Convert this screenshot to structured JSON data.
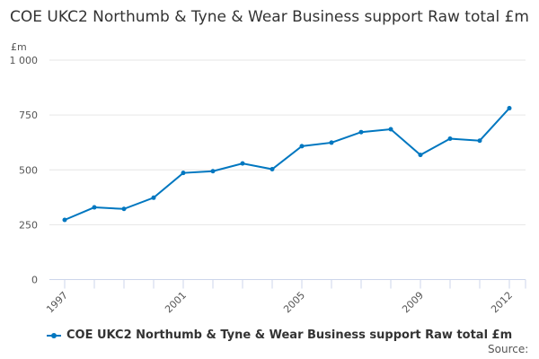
{
  "chart_data": {
    "type": "line",
    "title": "COE UKC2 Northumb & Tyne & Wear Business support Raw total £m",
    "ylabel": "£m",
    "xlabel": "",
    "x": [
      1997,
      1998,
      1999,
      2000,
      2001,
      2002,
      2003,
      2004,
      2005,
      2006,
      2007,
      2008,
      2009,
      2010,
      2011,
      2012
    ],
    "x_tick_labels": [
      "1997",
      "2001",
      "2005",
      "2009",
      "2012"
    ],
    "y_ticks": [
      0,
      250,
      500,
      750,
      1000
    ],
    "y_tick_labels": [
      "0",
      "250",
      "500",
      "750",
      "1 000"
    ],
    "ylim": [
      0,
      1000
    ],
    "grid": true,
    "legend_placement": "bottom",
    "series": [
      {
        "name": "COE UKC2 Northumb & Tyne & Wear Business support Raw total £m",
        "color": "#0077c0",
        "values": [
          272,
          329,
          322,
          373,
          486,
          494,
          529,
          503,
          608,
          624,
          672,
          685,
          568,
          642,
          633,
          781
        ]
      }
    ],
    "source_label": "Source:"
  }
}
